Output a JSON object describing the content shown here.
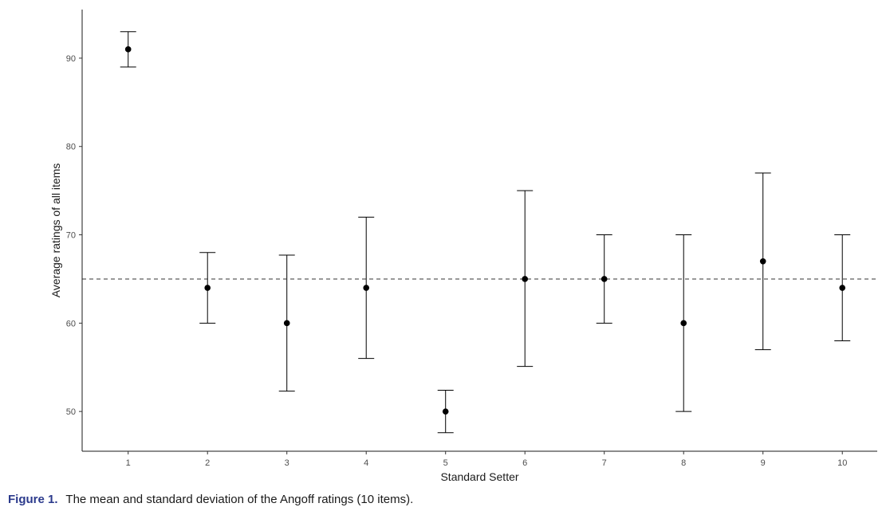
{
  "chart_data": {
    "type": "errorbar",
    "xlabel": "Standard Setter",
    "ylabel": "Average ratings of all items",
    "categories": [
      "1",
      "2",
      "3",
      "4",
      "5",
      "6",
      "7",
      "8",
      "9",
      "10"
    ],
    "x_range": [
      0.42,
      10.44
    ],
    "ylim": [
      45.5,
      95.5
    ],
    "yticks": [
      50,
      60,
      70,
      80,
      90
    ],
    "series": [
      {
        "mean": [
          91,
          64,
          60,
          64,
          50,
          65,
          65,
          60,
          67,
          64
        ],
        "lower": [
          89,
          60,
          52.3,
          56,
          47.6,
          55.1,
          60,
          50,
          57,
          58
        ],
        "upper": [
          93,
          68,
          67.7,
          72,
          52.4,
          75,
          70,
          70,
          77,
          70
        ]
      }
    ],
    "reference_line": {
      "y": 65,
      "style": "dashed"
    },
    "grid": false,
    "colors": {
      "points": "#000000",
      "axis": "#1a1a1a",
      "caption_label": "#2b3a8c"
    }
  },
  "caption": {
    "label": "Figure 1.",
    "text": "The mean and standard deviation of the Angoff ratings (10 items)."
  }
}
